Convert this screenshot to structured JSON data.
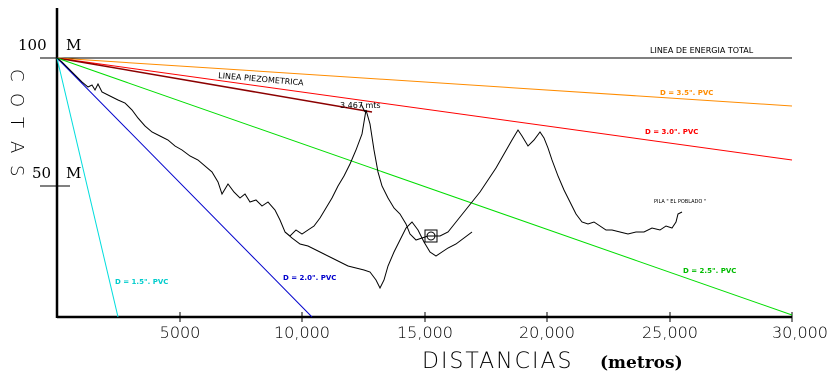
{
  "colors": {
    "axis": "#000000",
    "energy_line": "#000000",
    "piezometric": "#8b0000",
    "d35": "#ff8c00",
    "d30": "#ff0000",
    "d25": "#00dd00",
    "d20": "#0000cc",
    "d15": "#00dddd",
    "terrain": "#000000"
  },
  "y_axis": {
    "label_top": "100",
    "label_top_unit": "M",
    "label_mid": "50",
    "label_mid_unit": "M",
    "title_letters": [
      "C",
      "O",
      "T",
      "A",
      "S"
    ]
  },
  "x_axis": {
    "ticks": [
      "5000",
      "10,000",
      "15,000",
      "20,000",
      "25,000",
      "30,000"
    ],
    "title": "DISTANCIAS",
    "title_unit": "(metros)"
  },
  "labels": {
    "energy": "LINEA DE ENERGIA TOTAL",
    "piezometric": "LINEA PIEZOMETRICA",
    "gap": "3.467 mts",
    "d35": "D = 3.5\". PVC",
    "d30": "D = 3.0\". PVC",
    "d25": "D = 2.5\". PVC",
    "d20": "D = 2.0\". PVC",
    "d15": "D = 1.5\". PVC",
    "pila": "PILA \" EL POBLADO \""
  },
  "icons": {
    "tank": "tank-square-icon",
    "arrow": "arrow-icon"
  }
}
